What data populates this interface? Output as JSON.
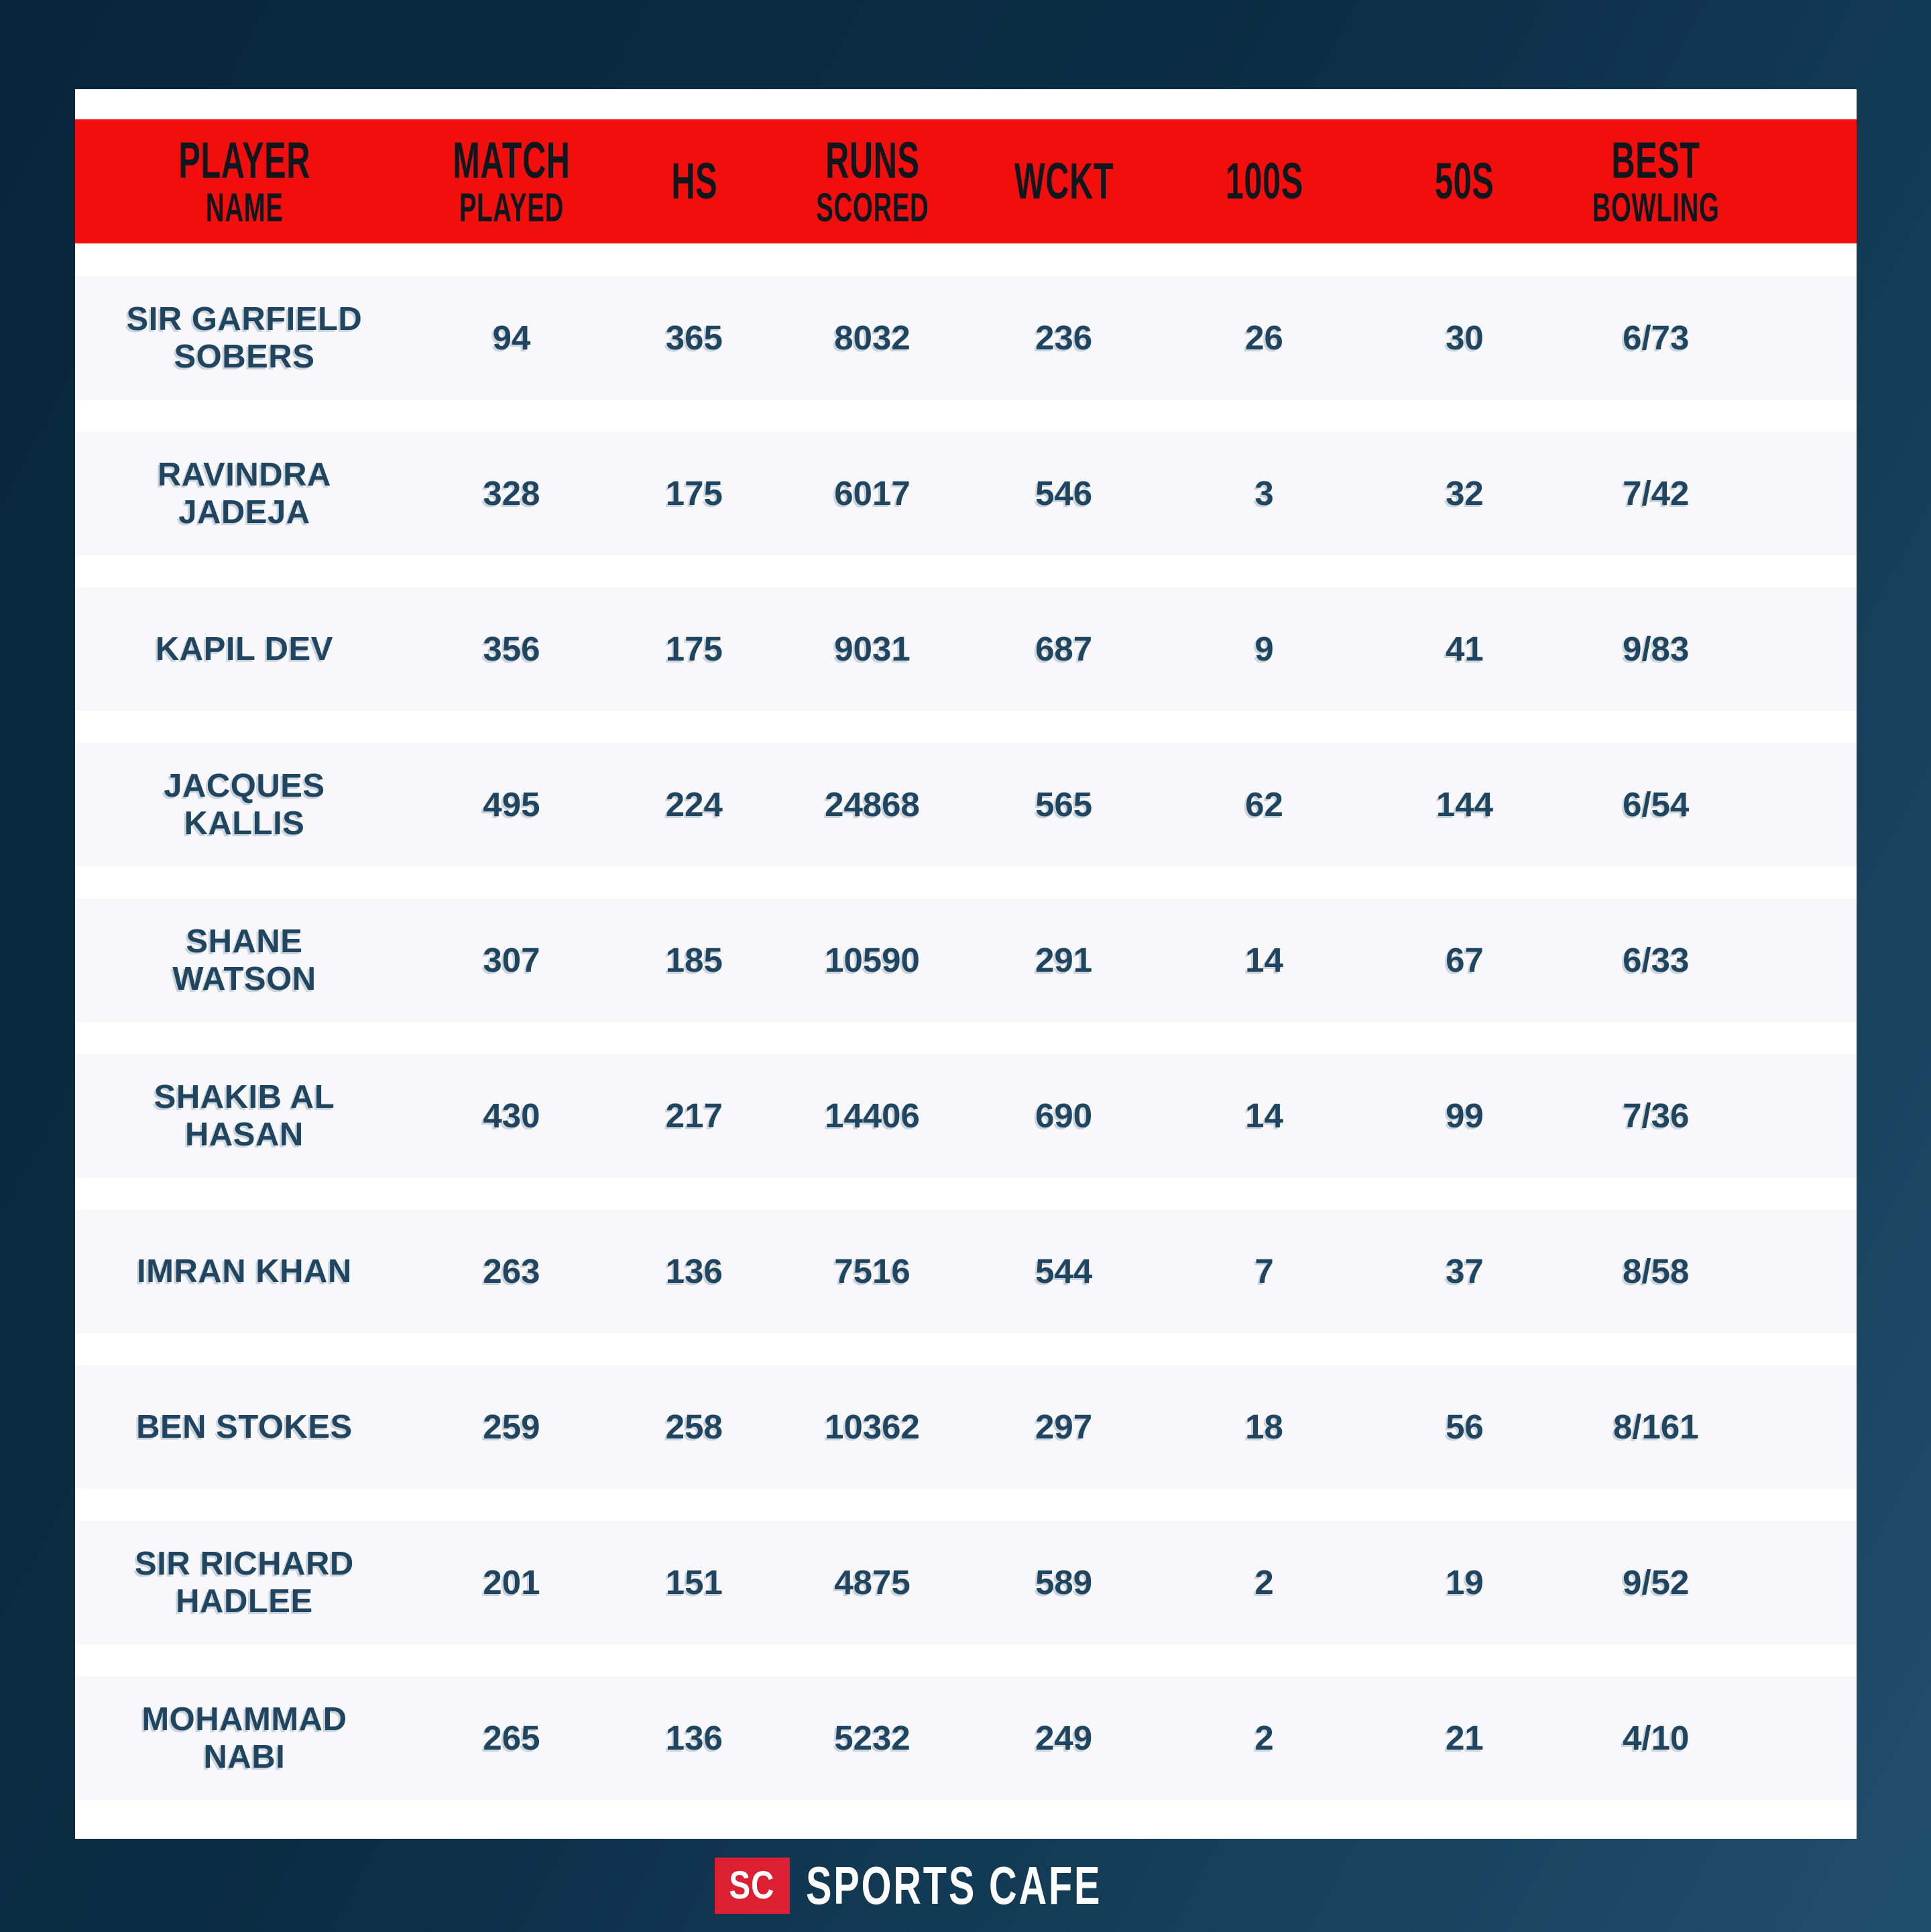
{
  "chart_data": {
    "type": "table",
    "title": "",
    "column_keys": [
      "name",
      "matches",
      "hs",
      "runs",
      "wckt",
      "hundreds",
      "fifties",
      "best"
    ],
    "columns": [
      "PLAYER\nNAME",
      "MATCH\nPLAYED",
      "HS",
      "RUNS\nSCORED",
      "WCKT",
      "100S",
      "50S",
      "BEST\nBOWLING"
    ],
    "rows": [
      [
        "SIR GARFIELD\nSOBERS",
        "94",
        "365",
        "8032",
        "236",
        "26",
        "30",
        "6/73"
      ],
      [
        "RAVINDRA\nJADEJA",
        "328",
        "175",
        "6017",
        "546",
        "3",
        "32",
        "7/42"
      ],
      [
        "KAPIL DEV",
        "356",
        "175",
        "9031",
        "687",
        "9",
        "41",
        "9/83"
      ],
      [
        "JACQUES\nKALLIS",
        "495",
        "224",
        "24868",
        "565",
        "62",
        "144",
        "6/54"
      ],
      [
        "SHANE\nWATSON",
        "307",
        "185",
        "10590",
        "291",
        "14",
        "67",
        "6/33"
      ],
      [
        "SHAKIB AL\nHASAN",
        "430",
        "217",
        "14406",
        "690",
        "14",
        "99",
        "7/36"
      ],
      [
        "IMRAN KHAN",
        "263",
        "136",
        "7516",
        "544",
        "7",
        "37",
        "8/58"
      ],
      [
        "BEN STOKES",
        "259",
        "258",
        "10362",
        "297",
        "18",
        "56",
        "8/161"
      ],
      [
        "SIR RICHARD\nHADLEE",
        "201",
        "151",
        "4875",
        "589",
        "2",
        "19",
        "9/52"
      ],
      [
        "MOHAMMAD\nNABI",
        "265",
        "136",
        "5232",
        "249",
        "2",
        "21",
        "4/10"
      ]
    ],
    "legend_position": "none",
    "grid": false
  },
  "footer": {
    "logo_text": "SC",
    "brand": "SPORTS CAFE"
  },
  "colors": {
    "bg_dark": "#07263c",
    "bg_light": "#1f4e6c",
    "card_bg": "#ffffff",
    "row_bg": "#f8f8fa",
    "header_bg": "#f30e0e",
    "header_text": "#10161c",
    "row_text": "#1f4560",
    "logo_red": "#dd1f33",
    "footer_text": "#fdfdfd"
  }
}
